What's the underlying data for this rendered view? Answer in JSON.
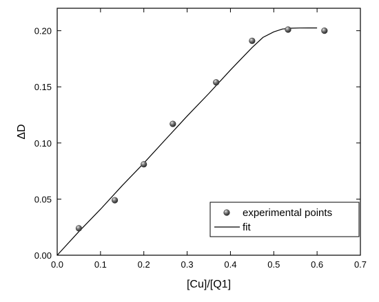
{
  "chart_data": {
    "type": "scatter",
    "title": "",
    "xlabel": "[Cu]/[Q1]",
    "ylabel": "ΔD",
    "xlim": [
      0.0,
      0.7
    ],
    "ylim": [
      0.0,
      0.22
    ],
    "xticks": [
      "0.0",
      "0.1",
      "0.2",
      "0.3",
      "0.4",
      "0.5",
      "0.6",
      "0.7"
    ],
    "yticks": [
      "0.00",
      "0.05",
      "0.10",
      "0.15",
      "0.20"
    ],
    "grid": false,
    "legend_position": "bottom-right",
    "series": [
      {
        "name": "experimental points",
        "kind": "scatter",
        "color": "#555555",
        "x": [
          0.05,
          0.133,
          0.2,
          0.267,
          0.367,
          0.45,
          0.533,
          0.617
        ],
        "y": [
          0.024,
          0.049,
          0.081,
          0.117,
          0.154,
          0.191,
          0.201,
          0.2
        ]
      },
      {
        "name": "fit",
        "kind": "line",
        "color": "#000000",
        "x": [
          0.0,
          0.05,
          0.1,
          0.15,
          0.2,
          0.25,
          0.3,
          0.35,
          0.4,
          0.425,
          0.45,
          0.475,
          0.5,
          0.52,
          0.54,
          0.56,
          0.58,
          0.6
        ],
        "y": [
          0.0,
          0.021,
          0.041,
          0.062,
          0.082,
          0.103,
          0.124,
          0.144,
          0.165,
          0.175,
          0.185,
          0.194,
          0.199,
          0.2015,
          0.2022,
          0.2024,
          0.2025,
          0.2025
        ]
      }
    ]
  }
}
